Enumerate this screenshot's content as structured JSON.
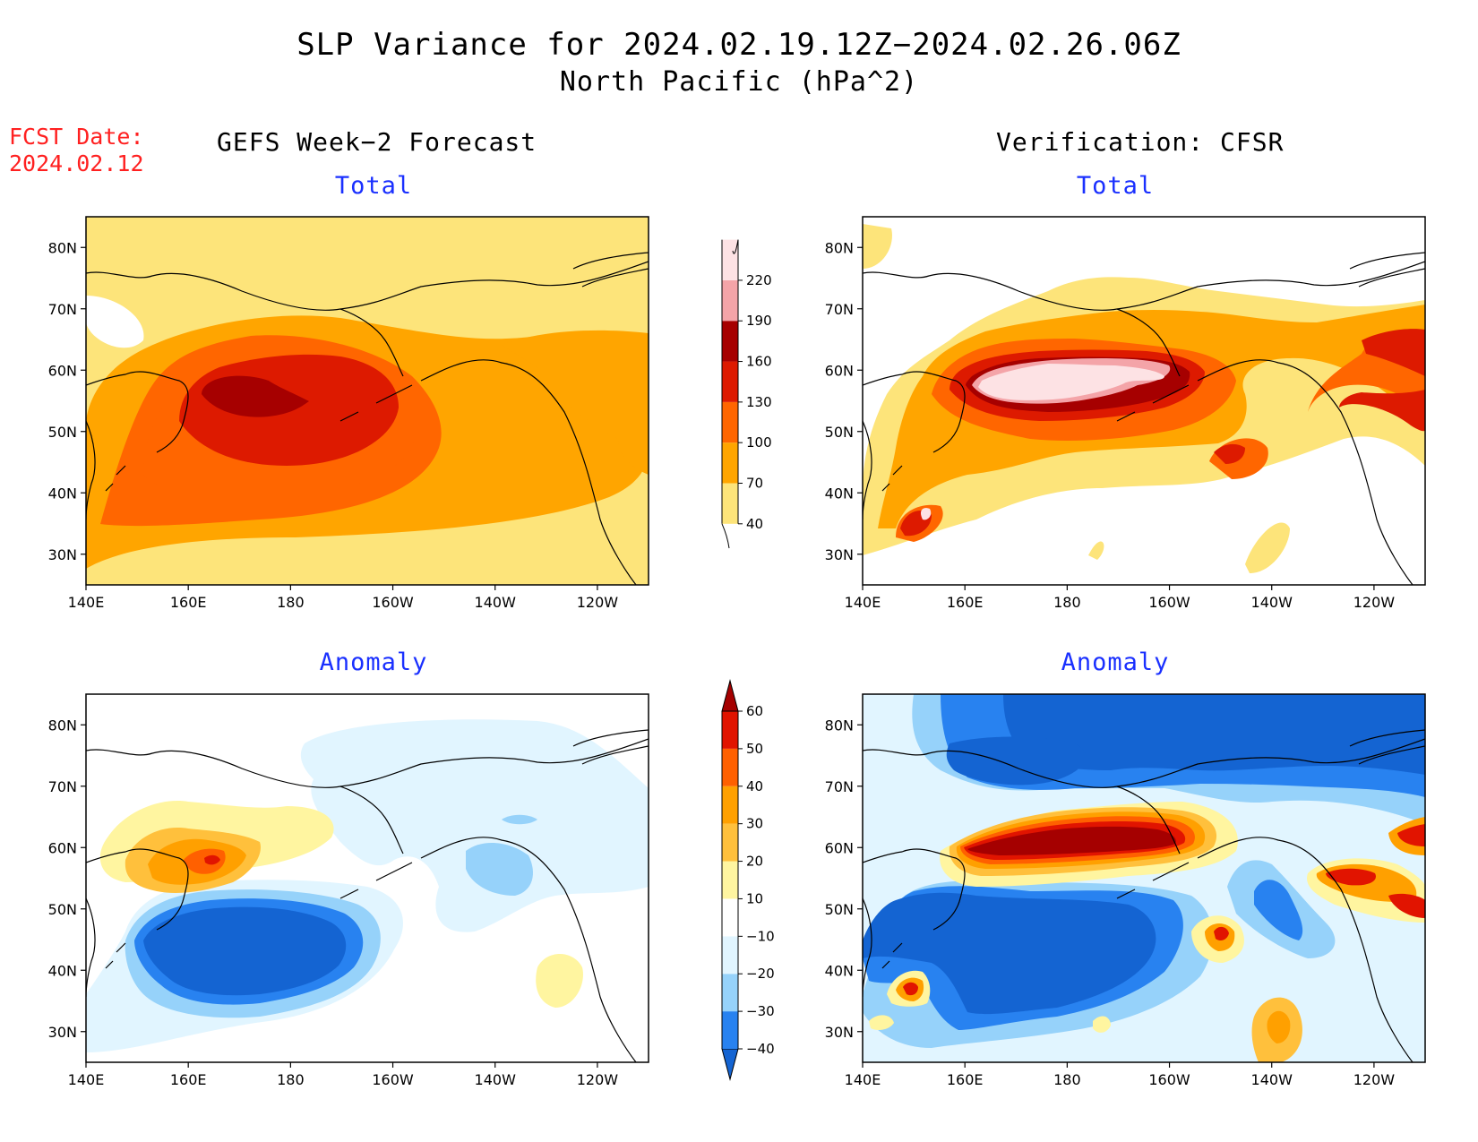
{
  "title": {
    "line1": "SLP Variance for 2024.02.19.12Z−2024.02.26.06Z",
    "line2": "North Pacific (hPa^2)"
  },
  "forecast": {
    "label": "FCST Date:",
    "date": "2024.02.12"
  },
  "columns": {
    "left": "GEFS Week−2 Forecast",
    "right": "Verification: CFSR"
  },
  "panels": {
    "total": "Total",
    "anomaly": "Anomaly"
  },
  "axes": {
    "lat_ticks": [
      "80N",
      "70N",
      "60N",
      "50N",
      "40N",
      "30N"
    ],
    "lat_values": [
      80,
      70,
      60,
      50,
      40,
      30
    ],
    "lon_ticks": [
      "140E",
      "160E",
      "180",
      "160W",
      "140W",
      "120W"
    ],
    "lon_values": [
      140,
      160,
      180,
      200,
      220,
      240
    ],
    "lon_range": [
      140,
      250
    ],
    "lat_range": [
      25,
      85
    ]
  },
  "colorbars": {
    "total": {
      "levels": [
        40,
        70,
        100,
        130,
        160,
        190,
        220
      ],
      "labels": [
        "40",
        "70",
        "100",
        "130",
        "160",
        "190",
        "220"
      ],
      "colors": [
        "#fde47a",
        "#ffa500",
        "#ff6600",
        "#dd1a00",
        "#a60000",
        "#f4a4a8",
        "#fde2e4"
      ]
    },
    "anomaly": {
      "levels": [
        -40,
        -30,
        -20,
        -10,
        10,
        20,
        30,
        40,
        50,
        60
      ],
      "labels": [
        "−40",
        "−30",
        "−20",
        "−10",
        "10",
        "20",
        "30",
        "40",
        "50",
        "60"
      ],
      "colors": [
        "#1464d2",
        "#2882f0",
        "#96d2fa",
        "#e1f5ff",
        "#ffffff",
        "#fff5a0",
        "#ffc03c",
        "#ffa000",
        "#ff6000",
        "#e11400",
        "#a50000"
      ]
    }
  }
}
